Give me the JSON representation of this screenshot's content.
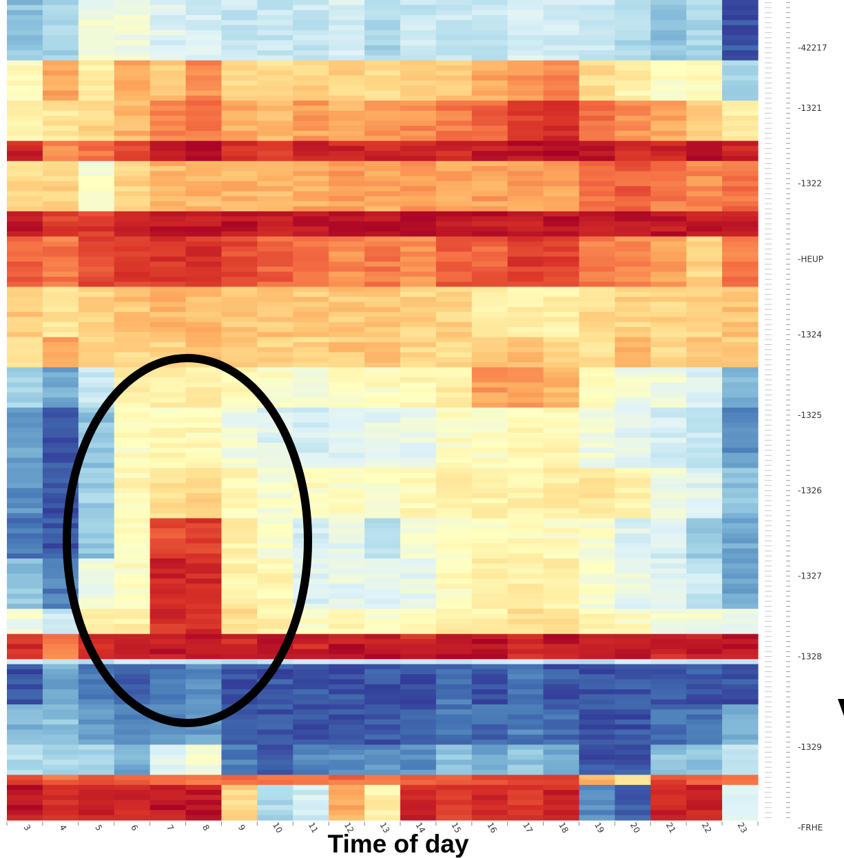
{
  "chart_data": {
    "type": "heatmap",
    "xlabel": "Time of day",
    "ylabel": "",
    "x": [
      "3",
      "4",
      "5",
      "6",
      "7",
      "8",
      "9",
      "10",
      "11",
      "12",
      "13",
      "14",
      "15",
      "16",
      "17",
      "18",
      "19",
      "20",
      "21",
      "22",
      "23"
    ],
    "y_labels": [
      {
        "label": "-42217",
        "row": 9
      },
      {
        "label": "-1321",
        "row": 21
      },
      {
        "label": "-1322",
        "row": 36
      },
      {
        "label": "-HEUP",
        "row": 51
      },
      {
        "label": "-1324",
        "row": 66
      },
      {
        "label": "-1325",
        "row": 82
      },
      {
        "label": "-1326",
        "row": 97
      },
      {
        "label": "-1327",
        "row": 114
      },
      {
        "label": "-1328",
        "row": 130
      },
      {
        "label": "-1329",
        "row": 148
      },
      {
        "label": "-FRHE",
        "row": 164
      }
    ],
    "color_scale": [
      "#313695",
      "#4575b4",
      "#74add1",
      "#abd9e9",
      "#e0f3f8",
      "#ffffbf",
      "#fee090",
      "#fdae61",
      "#f46d43",
      "#d73027",
      "#a50026"
    ],
    "row_bands": [
      {
        "rows": 12,
        "values": [
          0.25,
          0.3,
          0.45,
          0.45,
          0.4,
          0.38,
          0.35,
          0.35,
          0.35,
          0.38,
          0.3,
          0.35,
          0.35,
          0.35,
          0.38,
          0.38,
          0.35,
          0.3,
          0.25,
          0.3,
          0.05
        ]
      },
      {
        "rows": 8,
        "values": [
          0.5,
          0.7,
          0.55,
          0.72,
          0.65,
          0.75,
          0.6,
          0.6,
          0.62,
          0.62,
          0.6,
          0.62,
          0.65,
          0.7,
          0.75,
          0.75,
          0.6,
          0.55,
          0.5,
          0.5,
          0.3
        ]
      },
      {
        "rows": 8,
        "values": [
          0.55,
          0.58,
          0.62,
          0.68,
          0.75,
          0.78,
          0.7,
          0.68,
          0.72,
          0.7,
          0.72,
          0.75,
          0.78,
          0.82,
          0.88,
          0.9,
          0.8,
          0.75,
          0.7,
          0.62,
          0.55
        ]
      },
      {
        "rows": 4,
        "values": [
          0.92,
          0.75,
          0.8,
          0.85,
          0.95,
          0.95,
          0.9,
          0.9,
          0.92,
          0.92,
          0.92,
          0.92,
          0.92,
          0.95,
          0.97,
          0.97,
          0.95,
          0.92,
          0.92,
          0.95,
          0.92
        ]
      },
      {
        "rows": 10,
        "values": [
          0.6,
          0.62,
          0.48,
          0.62,
          0.68,
          0.68,
          0.68,
          0.68,
          0.7,
          0.72,
          0.7,
          0.72,
          0.7,
          0.72,
          0.72,
          0.72,
          0.8,
          0.82,
          0.78,
          0.75,
          0.8
        ]
      },
      {
        "rows": 5,
        "values": [
          0.95,
          0.88,
          0.88,
          0.95,
          0.95,
          0.95,
          0.95,
          0.95,
          0.95,
          0.95,
          0.95,
          0.95,
          0.95,
          0.95,
          0.95,
          0.95,
          0.95,
          0.95,
          0.95,
          0.95,
          0.95
        ]
      },
      {
        "rows": 10,
        "values": [
          0.82,
          0.78,
          0.85,
          0.88,
          0.9,
          0.9,
          0.85,
          0.82,
          0.78,
          0.75,
          0.78,
          0.75,
          0.82,
          0.82,
          0.88,
          0.88,
          0.78,
          0.75,
          0.72,
          0.62,
          0.78
        ]
      },
      {
        "rows": 10,
        "values": [
          0.65,
          0.58,
          0.62,
          0.65,
          0.68,
          0.68,
          0.65,
          0.65,
          0.65,
          0.65,
          0.65,
          0.62,
          0.62,
          0.55,
          0.55,
          0.55,
          0.6,
          0.62,
          0.62,
          0.62,
          0.65
        ]
      },
      {
        "rows": 6,
        "values": [
          0.6,
          0.7,
          0.62,
          0.62,
          0.62,
          0.65,
          0.65,
          0.62,
          0.62,
          0.65,
          0.65,
          0.62,
          0.6,
          0.65,
          0.68,
          0.62,
          0.6,
          0.68,
          0.62,
          0.65,
          0.65
        ]
      },
      {
        "rows": 8,
        "values": [
          0.3,
          0.2,
          0.35,
          0.55,
          0.55,
          0.55,
          0.52,
          0.5,
          0.48,
          0.5,
          0.5,
          0.52,
          0.55,
          0.72,
          0.72,
          0.68,
          0.5,
          0.45,
          0.45,
          0.4,
          0.22
        ]
      },
      {
        "rows": 12,
        "values": [
          0.18,
          0.05,
          0.25,
          0.5,
          0.52,
          0.52,
          0.45,
          0.4,
          0.38,
          0.4,
          0.42,
          0.42,
          0.5,
          0.5,
          0.52,
          0.52,
          0.45,
          0.42,
          0.38,
          0.35,
          0.15
        ]
      },
      {
        "rows": 10,
        "values": [
          0.15,
          0.05,
          0.28,
          0.52,
          0.6,
          0.62,
          0.52,
          0.48,
          0.5,
          0.5,
          0.5,
          0.52,
          0.55,
          0.55,
          0.55,
          0.55,
          0.58,
          0.55,
          0.45,
          0.4,
          0.25
        ]
      },
      {
        "rows": 8,
        "values": [
          0.1,
          0.05,
          0.25,
          0.5,
          0.85,
          0.88,
          0.55,
          0.48,
          0.38,
          0.42,
          0.32,
          0.45,
          0.5,
          0.5,
          0.52,
          0.5,
          0.48,
          0.4,
          0.38,
          0.28,
          0.2
        ]
      },
      {
        "rows": 10,
        "values": [
          0.25,
          0.12,
          0.45,
          0.5,
          0.92,
          0.92,
          0.55,
          0.52,
          0.4,
          0.42,
          0.4,
          0.42,
          0.5,
          0.55,
          0.55,
          0.55,
          0.48,
          0.42,
          0.4,
          0.35,
          0.2
        ]
      },
      {
        "rows": 5,
        "values": [
          0.45,
          0.35,
          0.55,
          0.55,
          0.9,
          0.9,
          0.6,
          0.55,
          0.5,
          0.52,
          0.5,
          0.52,
          0.55,
          0.55,
          0.6,
          0.58,
          0.52,
          0.5,
          0.45,
          0.45,
          0.42
        ]
      },
      {
        "rows": 5,
        "values": [
          0.9,
          0.78,
          0.92,
          0.92,
          0.95,
          0.95,
          0.92,
          0.95,
          0.92,
          0.95,
          0.95,
          0.92,
          0.95,
          0.95,
          0.92,
          0.95,
          0.92,
          0.95,
          0.92,
          0.95,
          0.95
        ]
      },
      {
        "rows": 1,
        "values": [
          0.35,
          0.35,
          0.35,
          0.35,
          0.35,
          0.35,
          0.35,
          0.35,
          0.35,
          0.35,
          0.35,
          0.35,
          0.35,
          0.35,
          0.35,
          0.35,
          0.35,
          0.35,
          0.35,
          0.35,
          0.35
        ]
      },
      {
        "rows": 8,
        "values": [
          0.05,
          0.2,
          0.12,
          0.05,
          0.1,
          0.15,
          0.05,
          0.05,
          0.05,
          0.05,
          0.05,
          0.05,
          0.1,
          0.05,
          0.1,
          0.05,
          0.05,
          0.05,
          0.05,
          0.05,
          0.05
        ]
      },
      {
        "rows": 8,
        "values": [
          0.22,
          0.25,
          0.18,
          0.12,
          0.15,
          0.18,
          0.05,
          0.05,
          0.05,
          0.05,
          0.05,
          0.05,
          0.1,
          0.08,
          0.12,
          0.08,
          0.05,
          0.05,
          0.1,
          0.1,
          0.2
        ]
      },
      {
        "rows": 6,
        "values": [
          0.32,
          0.3,
          0.3,
          0.2,
          0.4,
          0.45,
          0.12,
          0.05,
          0.12,
          0.15,
          0.15,
          0.15,
          0.25,
          0.2,
          0.25,
          0.2,
          0.05,
          0.05,
          0.25,
          0.25,
          0.35
        ]
      },
      {
        "rows": 2,
        "values": [
          0.85,
          0.8,
          0.82,
          0.82,
          0.8,
          0.78,
          0.78,
          0.78,
          0.82,
          0.8,
          0.8,
          0.8,
          0.85,
          0.85,
          0.85,
          0.85,
          0.7,
          0.58,
          0.85,
          0.82,
          0.8
        ]
      },
      {
        "rows": 7,
        "values": [
          0.95,
          0.92,
          0.92,
          0.92,
          0.95,
          0.95,
          0.62,
          0.3,
          0.38,
          0.7,
          0.55,
          0.92,
          0.88,
          0.9,
          0.88,
          0.92,
          0.15,
          0.05,
          0.92,
          0.92,
          0.42
        ]
      }
    ]
  }
}
